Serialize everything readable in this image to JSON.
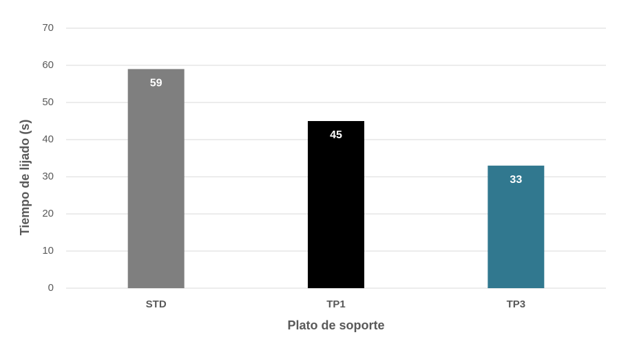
{
  "chart_data": {
    "type": "bar",
    "x_label": "Plato de soporte",
    "y_label": "Tiempo de lijado (s)",
    "categories": [
      "STD",
      "TP1",
      "TP3"
    ],
    "values": [
      59,
      45,
      33
    ],
    "colors": [
      "#7f7f7f",
      "#000000",
      "#31788f"
    ],
    "ylim": [
      0,
      70
    ],
    "yticks": [
      0,
      10,
      20,
      30,
      40,
      50,
      60,
      70
    ],
    "grid": true
  }
}
